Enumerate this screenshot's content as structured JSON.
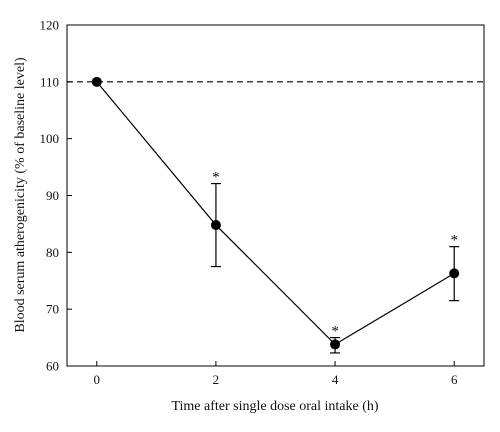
{
  "chart_data": {
    "type": "line",
    "x": [
      0,
      2,
      4,
      6
    ],
    "y": [
      110,
      84.8,
      63.8,
      76.3
    ],
    "error_upper": [
      110,
      92.1,
      65.0,
      81.0
    ],
    "error_lower": [
      110,
      77.5,
      62.3,
      71.5
    ],
    "significance": [
      "",
      "*",
      "*",
      "*"
    ],
    "baseline": 110,
    "xlabel": "Time after single dose oral intake (h)",
    "ylabel": "Blood serum atherogenicity (% of baseline level)",
    "xlim": [
      -0.5,
      6.5
    ],
    "ylim": [
      60,
      120
    ],
    "xticks": [
      "0",
      "2",
      "4",
      "6"
    ],
    "yticks": [
      "60",
      "70",
      "80",
      "90",
      "100",
      "110",
      "120"
    ],
    "grid": false,
    "line_color": "#000000",
    "baseline_style": "dashed"
  }
}
